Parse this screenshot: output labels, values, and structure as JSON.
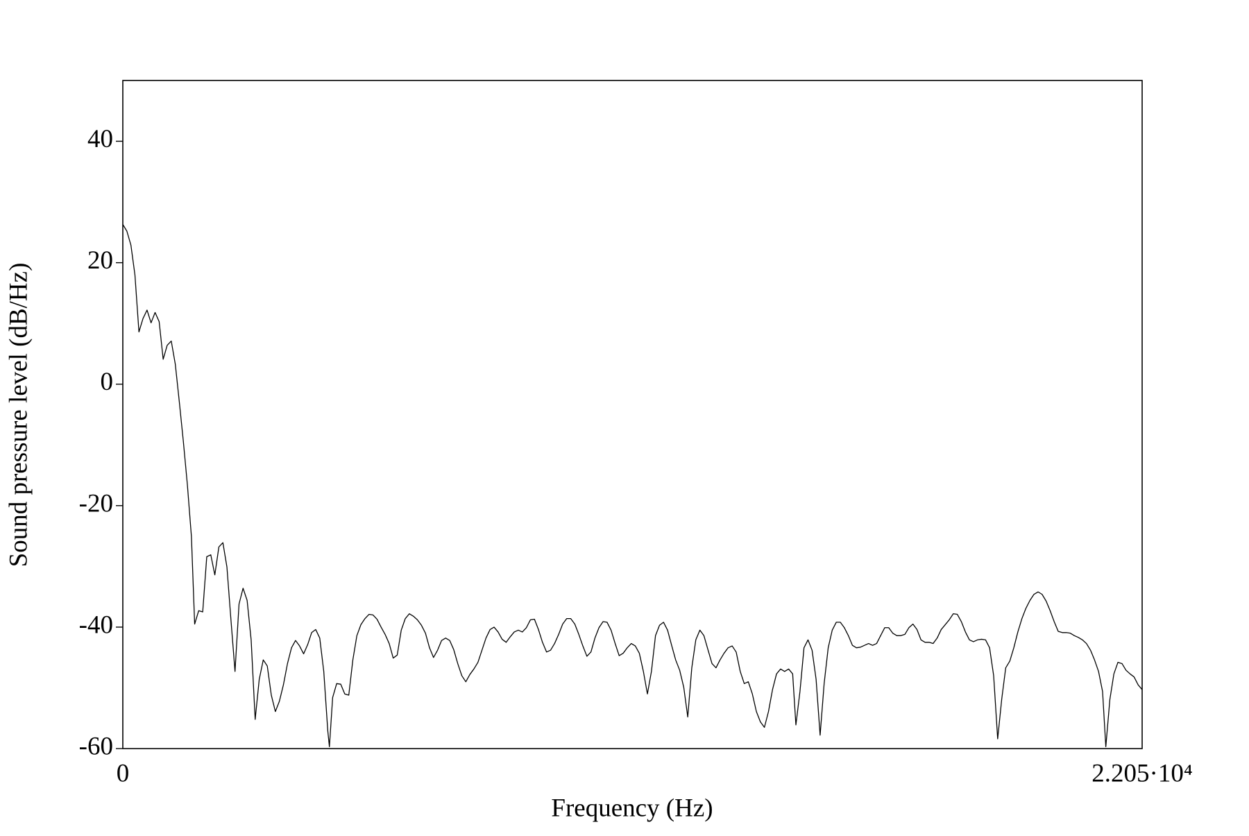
{
  "chart_data": {
    "type": "line",
    "xlabel": "Frequency (Hz)",
    "ylabel": "Sound pressure level (dB/Hz)",
    "xlim": [
      0,
      22050
    ],
    "ylim": [
      -60,
      50
    ],
    "xticks": [
      0,
      {
        "value": 22050,
        "label": "2.205·10⁴"
      }
    ],
    "yticks": [
      -60,
      -40,
      -20,
      0,
      20,
      40
    ],
    "grid": false,
    "x": [
      0,
      87,
      175,
      262,
      349,
      436,
      524,
      611,
      698,
      786,
      873,
      960,
      1048,
      1135,
      1222,
      1309,
      1397,
      1484,
      1554,
      1641,
      1728,
      1816,
      1903,
      1990,
      2078,
      2165,
      2252,
      2339,
      2427,
      2514,
      2601,
      2689,
      2776,
      2863,
      2951,
      3038,
      3125,
      3212,
      3300,
      3387,
      3474,
      3562,
      3649,
      3736,
      3823,
      3911,
      3998,
      4085,
      4173,
      4260,
      4347,
      4434,
      4469,
      4539,
      4626,
      4714,
      4801,
      4888,
      4976,
      5063,
      5150,
      5238,
      5325,
      5412,
      5499,
      5587,
      5674,
      5762,
      5849,
      5936,
      6023,
      6110,
      6198,
      6285,
      6372,
      6460,
      6547,
      6634,
      6721,
      6809,
      6896,
      6983,
      7071,
      7158,
      7245,
      7333,
      7420,
      7507,
      7594,
      7682,
      7769,
      7856,
      7944,
      8031,
      8118,
      8205,
      8293,
      8380,
      8467,
      8555,
      8642,
      8729,
      8817,
      8904,
      8991,
      9078,
      9166,
      9253,
      9340,
      9428,
      9515,
      9602,
      9689,
      9777,
      9864,
      9951,
      10039,
      10126,
      10213,
      10300,
      10388,
      10475,
      10562,
      10650,
      10737,
      10824,
      10912,
      10999,
      11086,
      11173,
      11261,
      11348,
      11435,
      11523,
      11610,
      11697,
      11784,
      11872,
      11959,
      12046,
      12134,
      12221,
      12308,
      12395,
      12483,
      12570,
      12657,
      12745,
      12832,
      12919,
      13006,
      13094,
      13181,
      13268,
      13356,
      13443,
      13530,
      13618,
      13705,
      13792,
      13879,
      13967,
      14054,
      14141,
      14229,
      14316,
      14403,
      14490,
      14560,
      14648,
      14735,
      14822,
      14910,
      14997,
      15084,
      15171,
      15259,
      15346,
      15433,
      15521,
      15608,
      15695,
      15782,
      15870,
      15957,
      16044,
      16132,
      16219,
      16306,
      16393,
      16481,
      16568,
      16655,
      16743,
      16830,
      16917,
      17004,
      17092,
      17179,
      17266,
      17354,
      17441,
      17528,
      17616,
      17703,
      17790,
      17877,
      17965,
      18052,
      18139,
      18227,
      18314,
      18401,
      18488,
      18576,
      18663,
      18750,
      18838,
      18925,
      19012,
      19099,
      19187,
      19274,
      19361,
      19449,
      19536,
      19623,
      19710,
      19798,
      19885,
      19972,
      20060,
      20147,
      20234,
      20322,
      20409,
      20496,
      20583,
      20671,
      20758,
      20845,
      20933,
      21020,
      21107,
      21194,
      21264,
      21352,
      21439,
      21526,
      21614,
      21701,
      21788,
      21875,
      21963,
      22050
    ],
    "series": [
      {
        "color": "#000000",
        "values": [
          26.3,
          25.2,
          22.9,
          18.0,
          8.6,
          10.8,
          12.2,
          10.1,
          11.8,
          10.3,
          4.1,
          6.4,
          7.1,
          3.3,
          -2.9,
          -9.4,
          -16.6,
          -25.1,
          -39.5,
          -37.3,
          -37.5,
          -28.4,
          -28.1,
          -31.4,
          -26.8,
          -26.1,
          -30.1,
          -38.8,
          -47.3,
          -36.2,
          -33.6,
          -35.6,
          -42.1,
          -55.2,
          -48.6,
          -45.4,
          -46.4,
          -51.2,
          -53.9,
          -52.2,
          -49.5,
          -46.0,
          -43.4,
          -42.2,
          -43.1,
          -44.4,
          -42.9,
          -40.9,
          -40.4,
          -41.8,
          -47.3,
          -57.1,
          -59.7,
          -51.6,
          -49.3,
          -49.4,
          -51.0,
          -51.2,
          -45.4,
          -41.4,
          -39.6,
          -38.6,
          -37.9,
          -38.0,
          -38.7,
          -40.0,
          -41.2,
          -42.7,
          -45.1,
          -44.6,
          -40.5,
          -38.6,
          -37.8,
          -38.2,
          -38.8,
          -39.7,
          -41.0,
          -43.4,
          -45.0,
          -43.8,
          -42.2,
          -41.8,
          -42.2,
          -43.7,
          -46.0,
          -48.0,
          -49.0,
          -47.8,
          -46.9,
          -45.8,
          -43.8,
          -41.8,
          -40.4,
          -40.0,
          -40.8,
          -42.0,
          -42.5,
          -41.6,
          -40.8,
          -40.5,
          -40.8,
          -40.1,
          -38.8,
          -38.7,
          -40.4,
          -42.5,
          -44.1,
          -43.8,
          -42.7,
          -41.2,
          -39.5,
          -38.6,
          -38.6,
          -39.5,
          -41.2,
          -43.1,
          -44.8,
          -44.1,
          -41.8,
          -40.1,
          -39.1,
          -39.2,
          -40.5,
          -42.7,
          -44.7,
          -44.3,
          -43.4,
          -42.7,
          -43.1,
          -44.3,
          -47.3,
          -51.0,
          -47.3,
          -41.4,
          -39.7,
          -39.2,
          -40.5,
          -43.0,
          -45.4,
          -47.1,
          -49.9,
          -54.8,
          -46.7,
          -42.1,
          -40.5,
          -41.4,
          -43.7,
          -46.0,
          -46.7,
          -45.4,
          -44.3,
          -43.4,
          -43.1,
          -44.1,
          -47.3,
          -49.3,
          -49.0,
          -51.0,
          -53.9,
          -55.6,
          -56.5,
          -53.9,
          -50.3,
          -47.7,
          -46.9,
          -47.3,
          -46.9,
          -47.7,
          -56.1,
          -50.6,
          -43.4,
          -42.1,
          -43.8,
          -48.6,
          -57.8,
          -49.3,
          -43.4,
          -40.5,
          -39.2,
          -39.2,
          -40.1,
          -41.4,
          -43.0,
          -43.4,
          -43.3,
          -43.0,
          -42.7,
          -43.0,
          -42.7,
          -41.4,
          -40.1,
          -40.1,
          -41.0,
          -41.4,
          -41.4,
          -41.2,
          -40.1,
          -39.5,
          -40.4,
          -42.1,
          -42.5,
          -42.5,
          -42.7,
          -41.8,
          -40.4,
          -39.6,
          -38.8,
          -37.8,
          -37.9,
          -39.1,
          -40.8,
          -42.1,
          -42.4,
          -42.1,
          -42.0,
          -42.1,
          -43.4,
          -48.0,
          -58.4,
          -51.9,
          -46.7,
          -45.6,
          -43.4,
          -40.8,
          -38.6,
          -36.9,
          -35.6,
          -34.6,
          -34.2,
          -34.6,
          -35.7,
          -37.3,
          -39.1,
          -40.7,
          -40.9,
          -40.9,
          -41.0,
          -41.4,
          -41.7,
          -42.1,
          -42.7,
          -43.8,
          -45.4,
          -47.3,
          -50.6,
          -59.7,
          -51.9,
          -47.7,
          -45.8,
          -46.0,
          -47.1,
          -47.7,
          -48.2,
          -49.5,
          -50.3
        ]
      }
    ]
  }
}
